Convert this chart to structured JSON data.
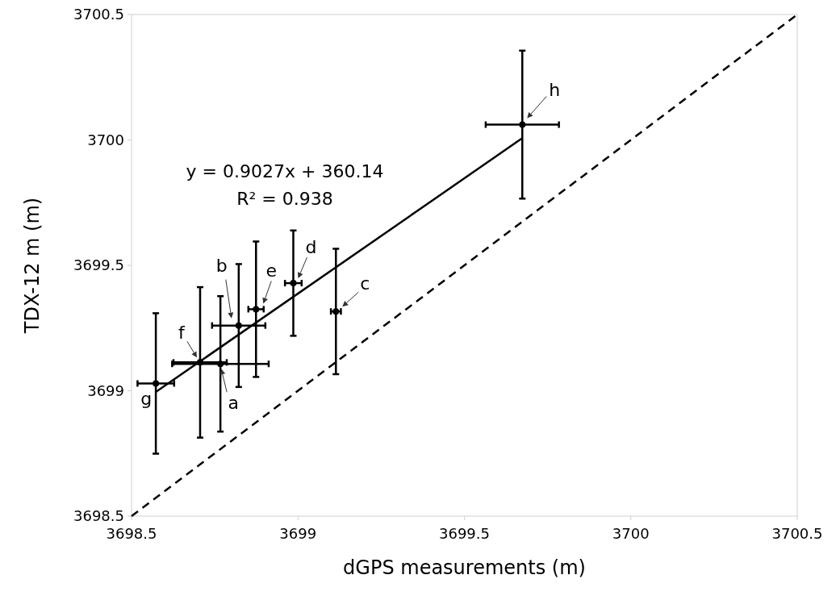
{
  "chart_data": {
    "type": "scatter",
    "xlabel": "dGPS measurements (m)",
    "ylabel": "TDX-12 m (m)",
    "xlim": [
      3698.5,
      3700.5
    ],
    "ylim": [
      3698.5,
      3700.5
    ],
    "xticks": [
      3698.5,
      3699,
      3699.5,
      3700,
      3700.5
    ],
    "yticks": [
      3698.5,
      3699,
      3699.5,
      3700,
      3700.5
    ],
    "grid": false,
    "series": [
      {
        "type": "scatter",
        "color": "#000000",
        "marker": "circle",
        "x": [
          3698.767,
          3698.822,
          3699.114,
          3698.986,
          3698.874,
          3698.706,
          3698.573,
          3699.674
        ],
        "values": [
          3699.107,
          3699.26,
          3699.316,
          3699.429,
          3699.325,
          3699.113,
          3699.029,
          3700.061
        ],
        "errors": [
          0.27,
          0.245,
          0.25,
          0.21,
          0.27,
          0.3,
          0.28,
          0.295
        ],
        "xerrors": [
          0.145,
          0.08,
          0.015,
          0.025,
          0.023,
          0.08,
          0.055,
          0.11
        ]
      },
      {
        "type": "line",
        "color": "#000000",
        "line_style": "solid",
        "x": [
          3698.573,
          3699.674
        ],
        "values": [
          3698.995,
          3700.007
        ]
      },
      {
        "type": "line",
        "color": "#000000",
        "line_style": "dashed",
        "x": [
          3698.5,
          3700.5
        ],
        "values": [
          3698.5,
          3700.5
        ]
      }
    ],
    "annotations": [
      {
        "text": "a",
        "x": 3698.767,
        "y": 3699.107
      },
      {
        "text": "b",
        "x": 3698.822,
        "y": 3699.26
      },
      {
        "text": "c",
        "x": 3699.114,
        "y": 3699.316
      },
      {
        "text": "d",
        "x": 3698.986,
        "y": 3699.429
      },
      {
        "text": "e",
        "x": 3698.874,
        "y": 3699.325
      },
      {
        "text": "f",
        "x": 3698.706,
        "y": 3699.113
      },
      {
        "text": "g",
        "x": 3698.573,
        "y": 3699.029
      },
      {
        "text": "h",
        "x": 3699.674,
        "y": 3700.061
      },
      "y = 0.9027x + 360.14",
      "R² = 0.938"
    ]
  }
}
